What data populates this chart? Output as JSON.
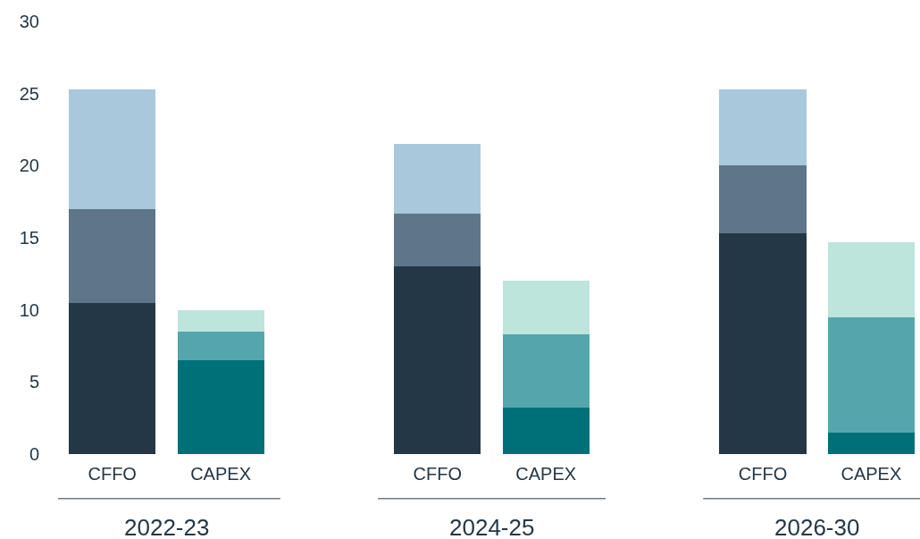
{
  "chart_data": {
    "type": "bar",
    "stacked": true,
    "categories": [
      "CFFO",
      "CAPEX",
      null,
      "CFFO",
      "CAPEX",
      null,
      "CFFO",
      "CAPEX"
    ],
    "annotations": [
      "2022-23",
      "2024-25",
      "2026-30"
    ],
    "series": [
      {
        "colors": [
          "#243746",
          "#007078",
          null,
          "#243746",
          "#007078",
          null,
          "#243746",
          "#007078"
        ],
        "values": [
          10.5,
          6.5,
          null,
          13,
          3.2,
          null,
          15.3,
          1.5
        ]
      },
      {
        "colors": [
          "#5f7589",
          "#55a6ac",
          null,
          "#5f7589",
          "#55a6ac",
          null,
          "#5f7589",
          "#55a6ac"
        ],
        "values": [
          6.5,
          2,
          null,
          3.7,
          5.1,
          null,
          4.7,
          8
        ]
      },
      {
        "colors": [
          "#a9c8dc",
          "#bde5dc",
          null,
          "#a9c8dc",
          "#bde5dc",
          null,
          "#a9c8dc",
          "#bde5dc"
        ],
        "values": [
          8.3,
          1.5,
          null,
          4.8,
          3.7,
          null,
          5.3,
          5.2
        ]
      }
    ],
    "ylim": [
      0,
      30
    ],
    "yticks": [
      0,
      5,
      10,
      15,
      20,
      25,
      30
    ],
    "grid": false
  }
}
